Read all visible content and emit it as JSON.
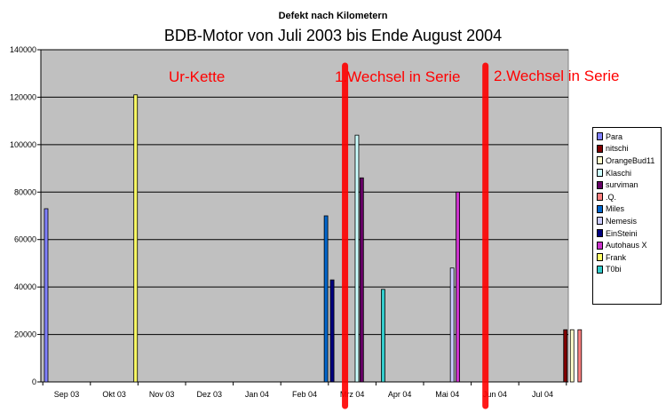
{
  "chart_data": {
    "type": "bar",
    "title": "Defekt nach Kilometern",
    "subtitle": "BDB-Motor von Juli 2003 bis Ende August 2004",
    "categories": [
      "Sep 03",
      "Okt 03",
      "Nov 03",
      "Dez 03",
      "Jan 04",
      "Feb 04",
      "Mrz 04",
      "Apr 04",
      "Mai 04",
      "Jun 04",
      "Jul 04"
    ],
    "ylim": [
      0,
      140000
    ],
    "yticks": [
      "0",
      "20000",
      "40000",
      "60000",
      "80000",
      "100000",
      "120000",
      "140000"
    ],
    "grid": true,
    "legend_position": "right",
    "series": [
      {
        "name": "Para",
        "color": "#8080ff",
        "points": [
          {
            "t": 0.0,
            "value": 73000
          }
        ]
      },
      {
        "name": "nitschi",
        "color": "#800000",
        "points": [
          {
            "t": 10.48,
            "value": 22000
          }
        ]
      },
      {
        "name": "OrangeBud11",
        "color": "#ffffcc",
        "points": [
          {
            "t": 10.62,
            "value": 22000
          }
        ]
      },
      {
        "name": "Klaschi",
        "color": "#ccffff",
        "points": [
          {
            "t": 6.1,
            "value": 104000
          }
        ]
      },
      {
        "name": "surviman",
        "color": "#660066",
        "points": [
          {
            "t": 6.2,
            "value": 86000
          }
        ]
      },
      {
        "name": ".Q.",
        "color": "#ff8080",
        "points": [
          {
            "t": 10.78,
            "value": 22000
          }
        ]
      },
      {
        "name": "Miles",
        "color": "#0066cc",
        "points": [
          {
            "t": 5.45,
            "value": 70000
          }
        ]
      },
      {
        "name": "Nemesis",
        "color": "#ccccff",
        "points": [
          {
            "t": 8.1,
            "value": 48000
          }
        ]
      },
      {
        "name": "EinSteini",
        "color": "#000080",
        "points": [
          {
            "t": 5.58,
            "value": 43000
          }
        ]
      },
      {
        "name": "Autohaus X",
        "color": "#cc33cc",
        "points": [
          {
            "t": 8.22,
            "value": 80000
          }
        ]
      },
      {
        "name": "Frank",
        "color": "#ffff66",
        "points": [
          {
            "t": 1.45,
            "value": 121000
          }
        ]
      },
      {
        "name": "T0bi",
        "color": "#33cccc",
        "points": [
          {
            "t": 6.65,
            "value": 39000
          }
        ]
      }
    ],
    "annotations": [
      {
        "text": "Ur-Kette",
        "color": "#ff0000"
      },
      {
        "text": "1.Wechsel in Serie",
        "color": "#ff0000"
      },
      {
        "text": "2.Wechsel in Serie",
        "color": "#ff0000"
      }
    ],
    "separators": [
      {
        "t": 5.85,
        "color": "#ff0000"
      },
      {
        "t": 8.8,
        "color": "#ff0000"
      }
    ],
    "plot_background": "#c0c0c0"
  }
}
